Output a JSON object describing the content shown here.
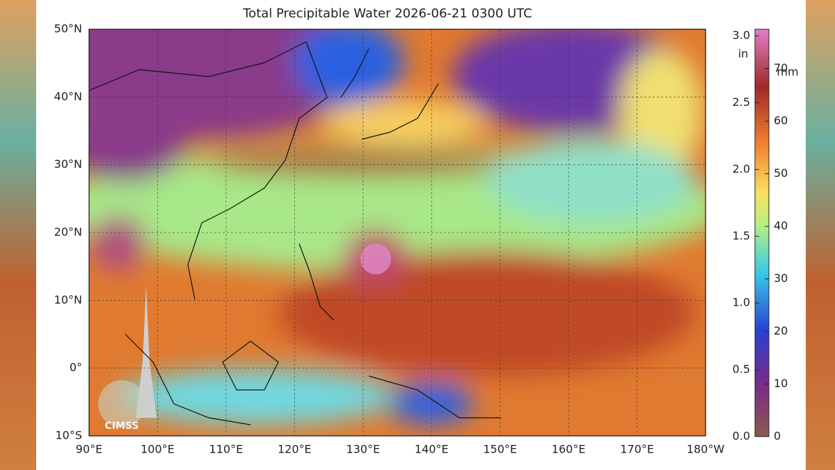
{
  "title": "Total Precipitable Water  2026-06-21 0300 UTC",
  "map": {
    "lat_lim": [
      -10,
      50
    ],
    "lon_lim": [
      90,
      180
    ],
    "lat_ticks": [
      {
        "value": 50,
        "label": "50°N"
      },
      {
        "value": 40,
        "label": "40°N"
      },
      {
        "value": 30,
        "label": "30°N"
      },
      {
        "value": 20,
        "label": "20°N"
      },
      {
        "value": 10,
        "label": "10°N"
      },
      {
        "value": 0,
        "label": "0°"
      },
      {
        "value": -10,
        "label": "10°S"
      }
    ],
    "lon_ticks": [
      {
        "value": 90,
        "label": "90°E"
      },
      {
        "value": 100,
        "label": "100°E"
      },
      {
        "value": 110,
        "label": "110°E"
      },
      {
        "value": 120,
        "label": "120°E"
      },
      {
        "value": 130,
        "label": "130°E"
      },
      {
        "value": 140,
        "label": "140°E"
      },
      {
        "value": 150,
        "label": "150°E"
      },
      {
        "value": 160,
        "label": "160°E"
      },
      {
        "value": 170,
        "label": "170°E"
      },
      {
        "value": 180,
        "label": "180°W"
      }
    ],
    "logo": "CIMSS"
  },
  "colorbar": {
    "in_label": "in",
    "mm_label": "mm",
    "in_lim": [
      0,
      3.05
    ],
    "mm_lim": [
      0,
      77.5
    ],
    "in_ticks": [
      {
        "value": 3.0,
        "label": "3.0"
      },
      {
        "value": 2.5,
        "label": "2.5"
      },
      {
        "value": 2.0,
        "label": "2.0"
      },
      {
        "value": 1.5,
        "label": "1.5"
      },
      {
        "value": 1.0,
        "label": "1.0"
      },
      {
        "value": 0.5,
        "label": "0.5"
      },
      {
        "value": 0.0,
        "label": "0.0"
      }
    ],
    "mm_ticks": [
      70,
      60,
      50,
      40,
      30,
      20,
      10,
      0
    ]
  }
}
